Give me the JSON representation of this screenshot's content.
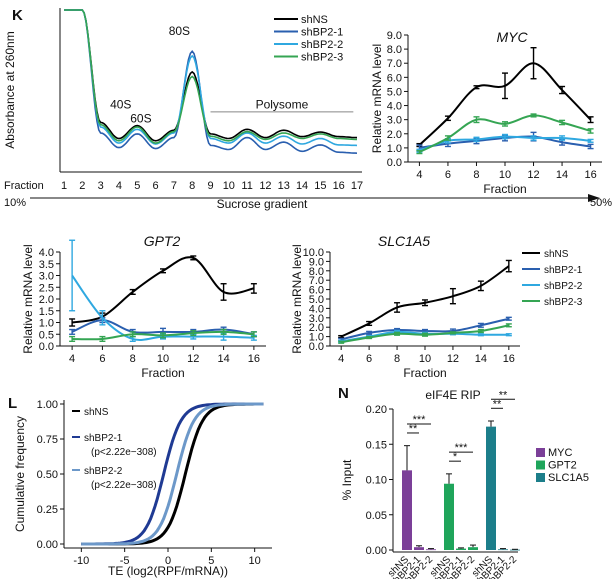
{
  "chart_data": [
    {
      "id": "K1",
      "panel_label": "K",
      "type": "line",
      "ylabel": "Absorbance at 260nm",
      "xlabel": "Sucrose gradient",
      "x_prefix": "Fraction",
      "fractions": [
        "1",
        "2",
        "3",
        "4",
        "5",
        "6",
        "7",
        "8",
        "9",
        "10",
        "11",
        "12",
        "13",
        "14",
        "15",
        "16",
        "17"
      ],
      "gradient_start": "10%",
      "gradient_end": "50%",
      "peak_labels": [
        "40S",
        "60S",
        "80S"
      ],
      "polysome_label": "Polysome",
      "legend": [
        "shNS",
        "shBP2-1",
        "shBP2-2",
        "shBP2-3"
      ],
      "series": [
        {
          "name": "shNS",
          "values": [
            3.4,
            3.4,
            0.95,
            0.6,
            0.88,
            0.55,
            0.78,
            2.05,
            0.7,
            0.6,
            0.8,
            0.62,
            0.78,
            0.64,
            0.74,
            0.64,
            0.62
          ]
        },
        {
          "name": "shBP2-1",
          "values": [
            3.4,
            3.4,
            0.72,
            0.4,
            0.7,
            0.38,
            0.62,
            2.5,
            0.45,
            0.36,
            0.62,
            0.36,
            0.52,
            0.32,
            0.46,
            0.3,
            0.28
          ]
        },
        {
          "name": "shBP2-2",
          "values": [
            3.4,
            3.4,
            0.85,
            0.5,
            0.8,
            0.48,
            0.72,
            2.4,
            0.6,
            0.5,
            0.72,
            0.5,
            0.65,
            0.48,
            0.6,
            0.46,
            0.45
          ]
        },
        {
          "name": "shBP2-3",
          "values": [
            3.4,
            3.4,
            0.9,
            0.55,
            0.85,
            0.5,
            0.75,
            1.95,
            0.65,
            0.55,
            0.75,
            0.58,
            0.72,
            0.6,
            0.7,
            0.6,
            0.58
          ]
        }
      ]
    },
    {
      "id": "K2",
      "type": "line",
      "title": "MYC",
      "xlabel": "Fraction",
      "ylabel": "Relative mRNA level",
      "x": [
        4,
        6,
        8,
        10,
        12,
        14,
        16
      ],
      "ylim": [
        0,
        9
      ],
      "yticks": [
        "0.0",
        "1.0",
        "2.0",
        "3.0",
        "4.0",
        "5.0",
        "6.0",
        "7.0",
        "8.0",
        "9.0"
      ],
      "series": [
        {
          "name": "shNS",
          "values": [
            1.2,
            3.1,
            5.3,
            5.4,
            7.0,
            5.1,
            3.0
          ],
          "err": [
            0.1,
            0.15,
            0.1,
            0.9,
            1.1,
            0.25,
            0.2
          ]
        },
        {
          "name": "shBP2-1",
          "values": [
            1.0,
            1.3,
            1.5,
            1.7,
            1.8,
            1.4,
            1.1
          ],
          "err": [
            0.2,
            0.2,
            0.2,
            0.2,
            0.3,
            0.2,
            0.15
          ]
        },
        {
          "name": "shBP2-2",
          "values": [
            0.8,
            1.5,
            1.6,
            1.8,
            1.7,
            1.7,
            1.5
          ],
          "err": [
            0.1,
            0.15,
            0.15,
            0.15,
            0.15,
            0.15,
            0.1
          ]
        },
        {
          "name": "shBP2-3",
          "values": [
            0.7,
            1.7,
            3.0,
            2.7,
            3.3,
            2.8,
            2.2
          ],
          "err": [
            0.1,
            0.15,
            0.2,
            0.15,
            0.1,
            0.15,
            0.15
          ]
        }
      ]
    },
    {
      "id": "K3",
      "type": "line",
      "title": "GPT2",
      "xlabel": "Fraction",
      "ylabel": "Relative mRNA level",
      "x": [
        4,
        6,
        8,
        10,
        12,
        14,
        16
      ],
      "ylim": [
        0,
        4
      ],
      "yticks": [
        "0.0",
        "0.5",
        "1.0",
        "1.5",
        "2.0",
        "2.5",
        "3.0",
        "3.5",
        "4.0"
      ],
      "series": [
        {
          "name": "shNS",
          "values": [
            1.0,
            1.25,
            2.3,
            3.2,
            3.75,
            2.3,
            2.45
          ],
          "err": [
            0.15,
            0.15,
            0.1,
            0.08,
            0.08,
            0.35,
            0.2
          ]
        },
        {
          "name": "shBP2-1",
          "values": [
            0.6,
            1.1,
            0.6,
            0.6,
            0.6,
            0.7,
            0.5
          ],
          "err": [
            0.1,
            0.1,
            0.1,
            0.15,
            0.1,
            0.1,
            0.1
          ]
        },
        {
          "name": "shBP2-2",
          "values": [
            3.0,
            1.2,
            0.3,
            0.4,
            0.4,
            0.4,
            0.35
          ],
          "err": [
            1.5,
            0.3,
            0.1,
            0.1,
            0.1,
            0.15,
            0.1
          ]
        },
        {
          "name": "shBP2-3",
          "values": [
            0.3,
            0.3,
            0.5,
            0.45,
            0.55,
            0.6,
            0.5
          ],
          "err": [
            0.1,
            0.1,
            0.1,
            0.1,
            0.1,
            0.1,
            0.1
          ]
        }
      ]
    },
    {
      "id": "K4",
      "type": "line",
      "title": "SLC1A5",
      "xlabel": "Fraction",
      "ylabel": "Relative mRNA level",
      "x": [
        4,
        6,
        8,
        10,
        12,
        14,
        16
      ],
      "ylim": [
        0,
        10
      ],
      "yticks": [
        "0.0",
        "1.0",
        "2.0",
        "3.0",
        "4.0",
        "5.0",
        "6.0",
        "7.0",
        "8.0",
        "9.0",
        "10.0"
      ],
      "legend": [
        "shNS",
        "shBP2-1",
        "shBP2-2",
        "shBP2-3"
      ],
      "series": [
        {
          "name": "shNS",
          "values": [
            1.0,
            2.4,
            4.1,
            4.6,
            5.3,
            6.4,
            8.5
          ],
          "err": [
            0.1,
            0.2,
            0.5,
            0.3,
            0.8,
            0.5,
            0.6
          ]
        },
        {
          "name": "shBP2-1",
          "values": [
            0.7,
            1.4,
            1.7,
            1.6,
            1.6,
            2.2,
            2.9
          ],
          "err": [
            0.1,
            0.15,
            0.15,
            0.15,
            0.2,
            0.2,
            0.15
          ]
        },
        {
          "name": "shBP2-2",
          "values": [
            0.5,
            1.0,
            1.5,
            1.3,
            1.3,
            1.2,
            1.2
          ],
          "err": [
            0.1,
            0.1,
            0.15,
            0.15,
            0.1,
            0.1,
            0.1
          ]
        },
        {
          "name": "shBP2-3",
          "values": [
            0.4,
            0.9,
            1.3,
            1.2,
            1.4,
            1.6,
            2.2
          ],
          "err": [
            0.1,
            0.1,
            0.15,
            0.15,
            0.1,
            0.15,
            0.15
          ]
        }
      ]
    },
    {
      "id": "L",
      "panel_label": "L",
      "type": "line",
      "xlabel": "TE (log2(RPF/mRNA))",
      "ylabel": "Cumulative frequency",
      "xlim": [
        -12,
        12
      ],
      "xticks": [
        "-10",
        "-5",
        "0",
        "5",
        "10"
      ],
      "ylim": [
        0,
        1
      ],
      "yticks": [
        "0.00",
        "0.25",
        "0.50",
        "0.75",
        "1.00"
      ],
      "legend": [
        {
          "name": "shNS",
          "note": ""
        },
        {
          "name": "shBP2-1",
          "note": "(p<2.22e−308)"
        },
        {
          "name": "shBP2-2",
          "note": "(p<2.22e−308)"
        }
      ],
      "series": [
        {
          "name": "shNS",
          "median": 2.0,
          "scale": 1.0
        },
        {
          "name": "shBP2-1",
          "median": -0.5,
          "scale": 1.0
        },
        {
          "name": "shBP2-2",
          "median": 1.0,
          "scale": 1.0
        }
      ]
    },
    {
      "id": "N",
      "panel_label": "N",
      "type": "bar",
      "title": "eIF4E RIP",
      "ylabel": "% Input",
      "ylim": [
        0,
        0.2
      ],
      "yticks": [
        "0.00",
        "0.05",
        "0.10",
        "0.15",
        "0.20"
      ],
      "categories": [
        "shNS",
        "shBP2-1",
        "shBP2-2"
      ],
      "legend": [
        "MYC",
        "GPT2",
        "SLC1A5"
      ],
      "groups": [
        {
          "name": "MYC",
          "values": [
            0.113,
            0.004,
            0.001
          ],
          "err": [
            0.035,
            0.002,
            0.001
          ],
          "sig": [
            "**",
            "***"
          ]
        },
        {
          "name": "GPT2",
          "values": [
            0.094,
            0.002,
            0.004
          ],
          "err": [
            0.014,
            0.001,
            0.003
          ],
          "sig": [
            "*",
            "***"
          ]
        },
        {
          "name": "SLC1A5",
          "values": [
            0.175,
            0.001,
            0.0005
          ],
          "err": [
            0.008,
            0.001,
            0.0005
          ],
          "sig": [
            "**",
            "**"
          ]
        }
      ]
    }
  ],
  "colors": {
    "shNS": "#000000",
    "shBP2-1": "#2a5faf",
    "shBP2-2": "#2fa8e0",
    "shBP2-3": "#35a553",
    "L_shBP2-1": "#1f3a93",
    "L_shBP2-2": "#6c98c9",
    "MYC": "#7b3f98",
    "GPT2": "#1fa55b",
    "SLC1A5": "#1c7e8a"
  }
}
